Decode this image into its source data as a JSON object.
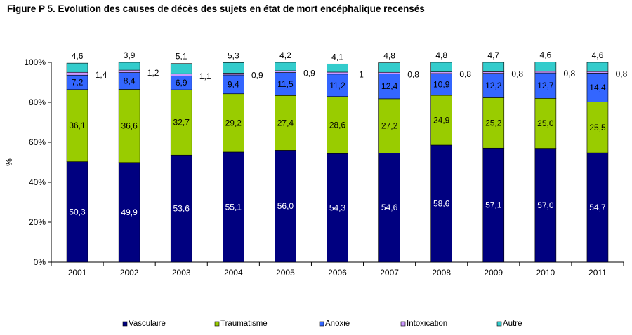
{
  "figure_title": "Figure P 5. Evolution des causes de décès des sujets en état de mort encéphalique recensés",
  "chart_data": {
    "type": "bar",
    "stacked": true,
    "percent": true,
    "title": "Figure P 5. Evolution des causes de décès des sujets en état de mort encéphalique recensés",
    "xlabel": "",
    "ylabel": "%",
    "ylim": [
      0,
      100
    ],
    "yticks": [
      "0%",
      "20%",
      "40%",
      "60%",
      "80%",
      "100%"
    ],
    "grid": false,
    "legend_position": "bottom",
    "categories": [
      "2001",
      "2002",
      "2003",
      "2004",
      "2005",
      "2006",
      "2007",
      "2008",
      "2009",
      "2010",
      "2011"
    ],
    "series": [
      {
        "name": "Vasculaire",
        "color": "#000080",
        "values": [
          50.3,
          49.9,
          53.6,
          55.1,
          56.0,
          54.3,
          54.6,
          58.6,
          57.1,
          57.0,
          54.7
        ],
        "labels": [
          "50,3",
          "49,9",
          "53,6",
          "55,1",
          "56,0",
          "54,3",
          "54,6",
          "58,6",
          "57,1",
          "57,0",
          "54,7"
        ]
      },
      {
        "name": "Traumatisme",
        "color": "#99CC00",
        "values": [
          36.1,
          36.6,
          32.7,
          29.2,
          27.4,
          28.6,
          27.2,
          24.9,
          25.2,
          25.0,
          25.5
        ],
        "labels": [
          "36,1",
          "36,6",
          "32,7",
          "29,2",
          "27,4",
          "28,6",
          "27,2",
          "24,9",
          "25,2",
          "25,0",
          "25,5"
        ]
      },
      {
        "name": "Anoxie",
        "color": "#3366FF",
        "values": [
          7.2,
          8.4,
          6.9,
          9.4,
          11.5,
          11.2,
          12.4,
          10.9,
          12.2,
          12.7,
          14.4
        ],
        "labels": [
          "7,2",
          "8,4",
          "6,9",
          "9,4",
          "11,5",
          "11,2",
          "12,4",
          "10,9",
          "12,2",
          "12,7",
          "14,4"
        ]
      },
      {
        "name": "Intoxication",
        "color": "#CC99FF",
        "values": [
          1.4,
          1.2,
          1.1,
          0.9,
          0.9,
          1.0,
          0.8,
          0.8,
          0.8,
          0.8,
          0.8
        ],
        "labels": [
          "1,4",
          "1,2",
          "1,1",
          "0,9",
          "0,9",
          "1",
          "0,8",
          "0,8",
          "0,8",
          "0,8",
          "0,8"
        ]
      },
      {
        "name": "Autre",
        "color": "#33CCCC",
        "values": [
          4.6,
          3.9,
          5.1,
          5.3,
          4.2,
          4.1,
          4.8,
          4.8,
          4.7,
          4.6,
          4.6
        ],
        "labels": [
          "4,6",
          "3,9",
          "5,1",
          "5,3",
          "4,2",
          "4,1",
          "4,8",
          "4,8",
          "4,7",
          "4,6",
          "4,6"
        ]
      }
    ]
  }
}
